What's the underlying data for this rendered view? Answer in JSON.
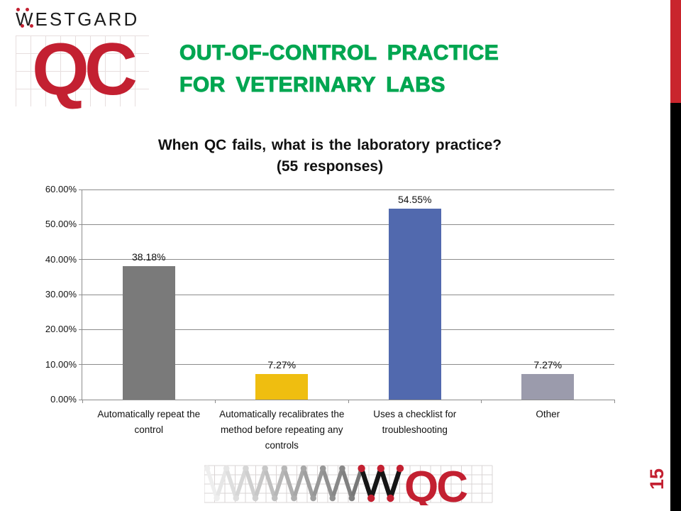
{
  "logo_top": {
    "brand": "WESTGARD",
    "qc": "QC"
  },
  "header": {
    "line1": "OUT-OF-CONTROL PRACTICE",
    "line2": "FOR VETERINARY LABS",
    "accent_green": "#00A651"
  },
  "chart_data": {
    "type": "bar",
    "title_line1": "When QC fails, what is the laboratory practice?",
    "title_line2": "(55 responses)",
    "categories": [
      {
        "label": "Automatically repeat the control",
        "lines": [
          "Automatically repeat the",
          "control"
        ]
      },
      {
        "label": "Automatically recalibrates the method before repeating any controls",
        "lines": [
          "Automatically recalibrates the",
          "method before repeating any",
          "controls"
        ]
      },
      {
        "label": "Uses a checklist for troubleshooting",
        "lines": [
          "Uses a checklist for",
          "troubleshooting"
        ]
      },
      {
        "label": "Other",
        "lines": [
          "Other"
        ]
      }
    ],
    "values": [
      38.18,
      7.27,
      54.55,
      7.27
    ],
    "value_labels": [
      "38.18%",
      "7.27%",
      "54.55%",
      "7.27%"
    ],
    "bar_colors": [
      "#7A7A7A",
      "#EFBE10",
      "#5169AE",
      "#9B9BAC"
    ],
    "ylim": [
      0,
      60
    ],
    "ytick_step": 10,
    "ytick_labels": [
      "0.00%",
      "10.00%",
      "20.00%",
      "30.00%",
      "40.00%",
      "50.00%",
      "60.00%"
    ],
    "grid": true,
    "grid_color": "#8C8C8C",
    "legend": "none",
    "xlabel": "",
    "ylabel": ""
  },
  "footer_logo": {
    "qc": "QC",
    "zigzag": "westgard-control-chart-zigzag"
  },
  "page_number": "15",
  "colors": {
    "brand_red": "#C32031",
    "sidebar_red": "#C9252D",
    "sidebar_black": "#000000"
  }
}
